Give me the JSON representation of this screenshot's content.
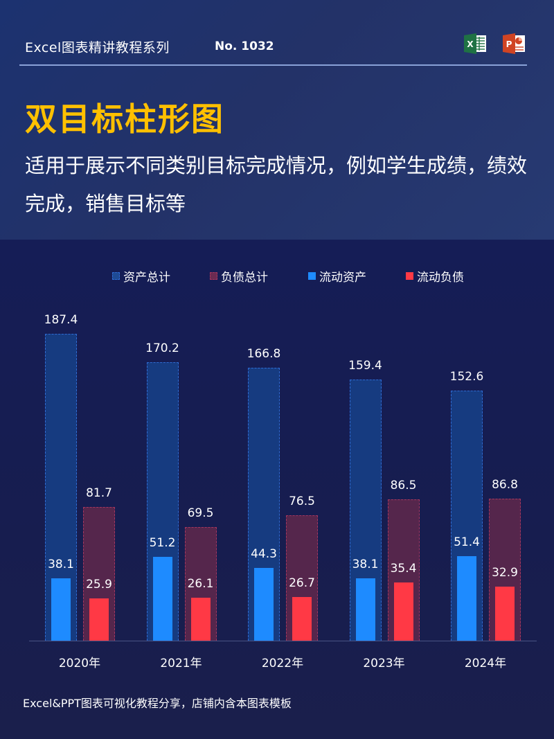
{
  "header": {
    "series_title": "Excel图表精讲教程系列",
    "series_no": "No. 1032",
    "icons": [
      "excel-icon",
      "powerpoint-icon"
    ],
    "main_title": "双目标柱形图",
    "subtitle": "适用于展示不同类别目标完成情况，例如学生成绩，绩效完成，销售目标等"
  },
  "legend": [
    {
      "label": "资产总计",
      "color": "#1e4a94",
      "style": "dashed"
    },
    {
      "label": "负债总计",
      "color": "#6b2b52",
      "style": "dashed"
    },
    {
      "label": "流动资产",
      "color": "#1e8bff",
      "style": "solid"
    },
    {
      "label": "流动负债",
      "color": "#ff3945",
      "style": "solid"
    }
  ],
  "footer": "Excel&PPT图表可视化教程分享，店铺内含本图表模板",
  "colors": {
    "title_accent": "#ffc000",
    "total_assets": "#163b80",
    "total_liabilities": "#55264c",
    "current_assets": "#1e8bff",
    "current_liabilities": "#ff3945",
    "background": "#171d4d"
  },
  "chart_data": {
    "type": "bar",
    "title": "双目标柱形图",
    "subtitle": "适用于展示不同类别目标完成情况，例如学生成绩，绩效完成，销售目标等",
    "categories": [
      "2020年",
      "2021年",
      "2022年",
      "2023年",
      "2024年"
    ],
    "series": [
      {
        "name": "资产总计",
        "values": [
          187.4,
          170.2,
          166.8,
          159.4,
          152.6
        ]
      },
      {
        "name": "负债总计",
        "values": [
          81.7,
          69.5,
          76.5,
          86.5,
          86.8
        ]
      },
      {
        "name": "流动资产",
        "values": [
          38.1,
          51.2,
          44.3,
          38.1,
          51.4
        ]
      },
      {
        "name": "流动负债",
        "values": [
          25.9,
          26.1,
          26.7,
          35.4,
          32.9
        ]
      }
    ],
    "overlay": "流动资产 drawn inside 资产总计; 流动负债 drawn inside 负债总计",
    "data_labels": true,
    "xlabel": "",
    "ylabel": "",
    "ylim": [
      0,
      190
    ],
    "grid": false,
    "legend_position": "top"
  }
}
